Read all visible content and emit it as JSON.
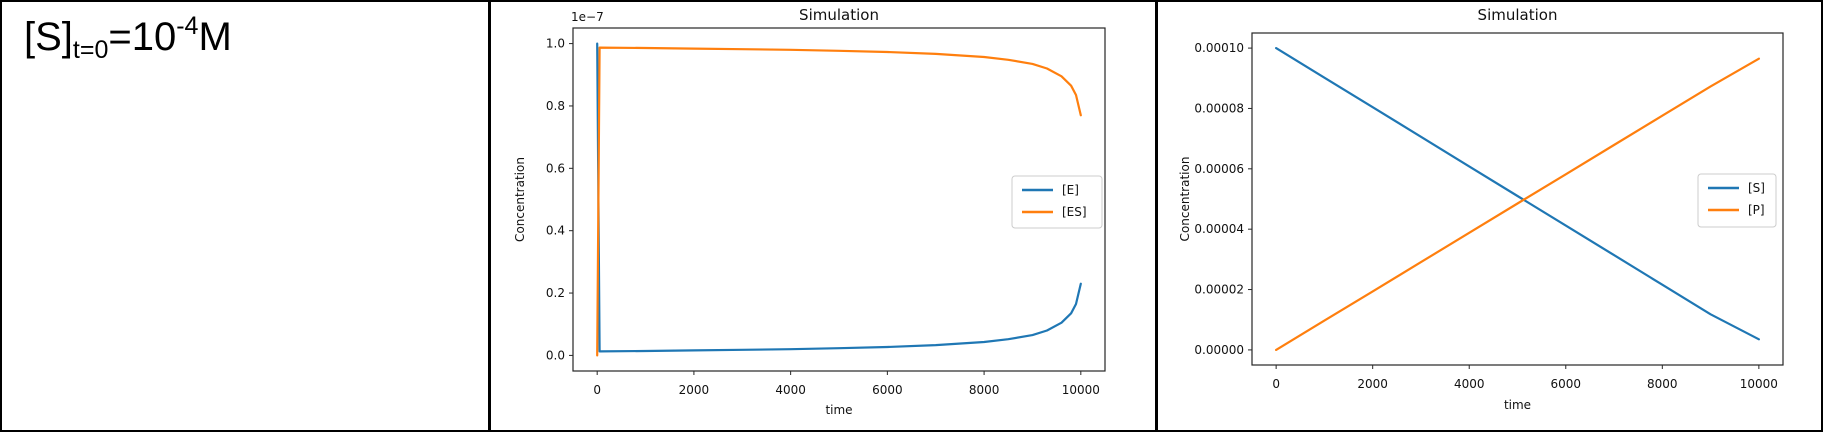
{
  "colors": {
    "blue": "#1f77b4",
    "orange": "#ff7f0e",
    "spine": "#262626",
    "legend_border": "#cccccc"
  },
  "left_cell": {
    "formula": {
      "base": "[S]",
      "subscript": "t=0",
      "equals_base": "=10",
      "superscript": "-4",
      "unit": "M"
    }
  },
  "chart_data": [
    {
      "type": "line",
      "title": "Simulation",
      "xlabel": "time",
      "ylabel": "Concentration",
      "y_offset_text": "1e−7",
      "grid": false,
      "legend_position": "center right",
      "xlim": [
        -500,
        10500
      ],
      "ylim": [
        -0.05,
        1.05
      ],
      "xticks": [
        0,
        2000,
        4000,
        6000,
        8000,
        10000
      ],
      "xtick_labels": [
        "0",
        "2000",
        "4000",
        "6000",
        "8000",
        "10000"
      ],
      "yticks": [
        0.0,
        0.2,
        0.4,
        0.6,
        0.8,
        1.0
      ],
      "ytick_labels": [
        "0.0",
        "0.2",
        "0.4",
        "0.6",
        "0.8",
        "1.0"
      ],
      "series": [
        {
          "name": "[E]",
          "color": "#1f77b4",
          "x": [
            0,
            50,
            1000,
            2000,
            3000,
            4000,
            5000,
            6000,
            7000,
            8000,
            8500,
            9000,
            9300,
            9600,
            9800,
            9900,
            10000
          ],
          "y": [
            1.0,
            0.013,
            0.014,
            0.016,
            0.018,
            0.02,
            0.023,
            0.027,
            0.033,
            0.043,
            0.052,
            0.065,
            0.08,
            0.105,
            0.135,
            0.165,
            0.23
          ]
        },
        {
          "name": "[ES]",
          "color": "#ff7f0e",
          "x": [
            0,
            50,
            1000,
            2000,
            3000,
            4000,
            5000,
            6000,
            7000,
            8000,
            8500,
            9000,
            9300,
            9600,
            9800,
            9900,
            10000
          ],
          "y": [
            0.0,
            0.987,
            0.986,
            0.984,
            0.982,
            0.98,
            0.977,
            0.973,
            0.967,
            0.957,
            0.948,
            0.935,
            0.92,
            0.895,
            0.865,
            0.835,
            0.77
          ]
        }
      ]
    },
    {
      "type": "line",
      "title": "Simulation",
      "xlabel": "time",
      "ylabel": "Concentration",
      "y_offset_text": "",
      "grid": false,
      "legend_position": "center right",
      "xlim": [
        -500,
        10500
      ],
      "ylim": [
        -5e-06,
        0.000105
      ],
      "xticks": [
        0,
        2000,
        4000,
        6000,
        8000,
        10000
      ],
      "xtick_labels": [
        "0",
        "2000",
        "4000",
        "6000",
        "8000",
        "10000"
      ],
      "yticks": [
        0.0,
        2e-05,
        4e-05,
        6e-05,
        8e-05,
        0.0001
      ],
      "ytick_labels": [
        "0.00000",
        "0.00002",
        "0.00004",
        "0.00006",
        "0.00008",
        "0.00010"
      ],
      "series": [
        {
          "name": "[S]",
          "color": "#1f77b4",
          "x": [
            0,
            1000,
            2000,
            3000,
            4000,
            5000,
            6000,
            7000,
            8000,
            9000,
            10000
          ],
          "y": [
            0.0001,
            9.02e-05,
            8.04e-05,
            7.06e-05,
            6.08e-05,
            5.1e-05,
            4.12e-05,
            3.14e-05,
            2.16e-05,
            1.18e-05,
            3.5e-06
          ]
        },
        {
          "name": "[P]",
          "color": "#ff7f0e",
          "x": [
            0,
            1000,
            2000,
            3000,
            4000,
            5000,
            6000,
            7000,
            8000,
            9000,
            10000
          ],
          "y": [
            0.0,
            9.7e-06,
            1.94e-05,
            2.91e-05,
            3.88e-05,
            4.85e-05,
            5.82e-05,
            6.79e-05,
            7.76e-05,
            8.73e-05,
            9.65e-05
          ]
        }
      ]
    }
  ]
}
